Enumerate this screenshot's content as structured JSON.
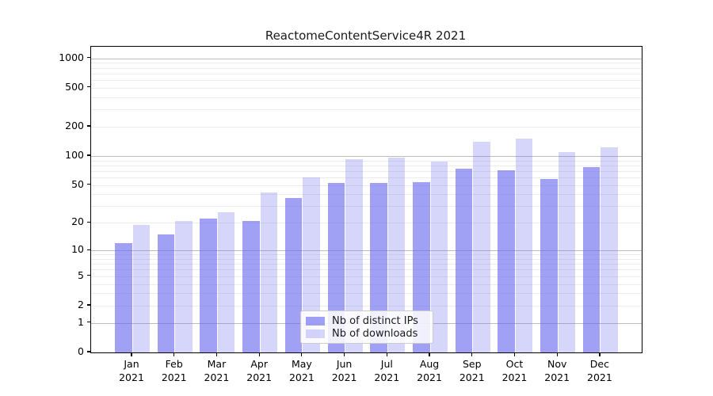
{
  "chart_data": {
    "type": "bar",
    "title": "ReactomeContentService4R 2021",
    "categories": [
      "Jan",
      "Feb",
      "Mar",
      "Apr",
      "May",
      "Jun",
      "Jul",
      "Aug",
      "Sep",
      "Oct",
      "Nov",
      "Dec"
    ],
    "category_year": "2021",
    "series": [
      {
        "name": "Nb of distinct IPs",
        "color": "rgba(102,102,238,0.62)",
        "values": [
          12,
          15,
          22,
          21,
          37,
          53,
          53,
          54,
          74,
          71,
          58,
          77
        ]
      },
      {
        "name": "Nb of downloads",
        "color": "rgba(102,102,238,0.27)",
        "values": [
          19,
          21,
          26,
          42,
          60,
          92,
          96,
          87,
          139,
          150,
          110,
          123
        ]
      }
    ],
    "xlabel": "",
    "ylabel": "",
    "yscale": "log1p",
    "yticks": [
      0,
      1,
      2,
      5,
      10,
      20,
      50,
      100,
      200,
      500,
      1000
    ],
    "ylim": [
      0,
      1300
    ],
    "grid": "horizontal only: light minor lines at 2-9, 20-90, 200-900; gray major lines at 1, 10, 100, 1000",
    "legend_position": "inside plot, lower middle"
  },
  "colors": {
    "bar_base": "#6666ee",
    "grid_minor": "#ececec",
    "grid_major": "#bdbdbd",
    "axis_frame": "#000000",
    "title_text": "#1a1a1a",
    "background": "#ffffff"
  }
}
